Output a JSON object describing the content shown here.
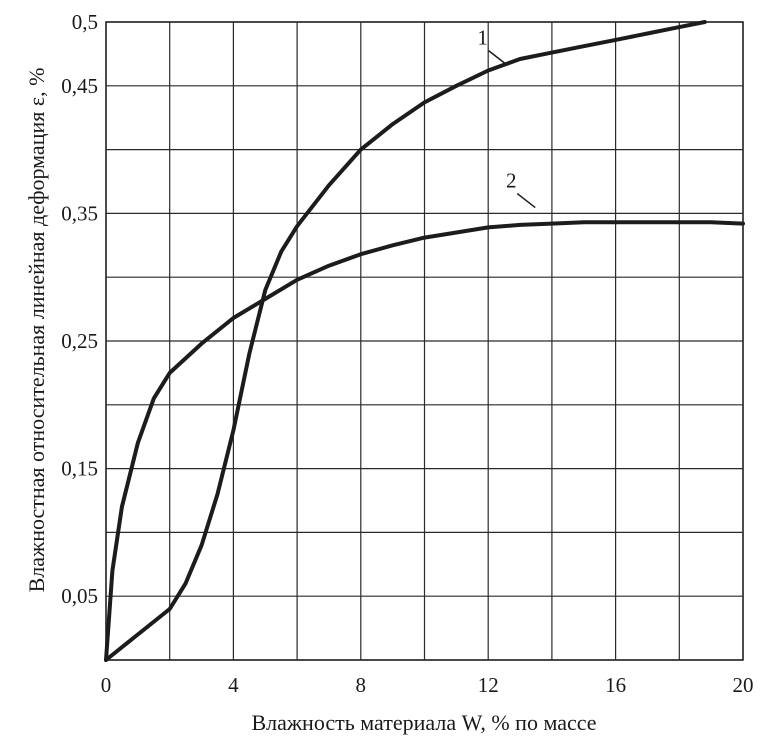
{
  "chart_data": {
    "type": "line",
    "xlabel": "Влажность  материала W, % по массе",
    "ylabel": "Влажностная относительная линейная деформация ε, %",
    "xlim": [
      0,
      20
    ],
    "ylim": [
      0,
      0.5
    ],
    "x_ticks": [
      "0",
      "4",
      "8",
      "12",
      "16",
      "20"
    ],
    "y_ticks": [
      "0,05",
      "0,15",
      "0,25",
      "0,35",
      "0,45",
      "0,5"
    ],
    "grid": true,
    "colors": {
      "curve": "#1c1c1c",
      "grid": "#2a2a2a"
    },
    "series": [
      {
        "name": "1",
        "x": [
          0,
          1,
          2,
          2.5,
          3,
          3.5,
          4,
          4.5,
          5,
          5.5,
          6,
          7,
          8,
          9,
          10,
          11,
          12,
          13,
          14,
          15,
          16,
          17,
          18,
          18.8
        ],
        "y": [
          0,
          0.02,
          0.04,
          0.06,
          0.09,
          0.13,
          0.18,
          0.24,
          0.29,
          0.32,
          0.34,
          0.372,
          0.4,
          0.42,
          0.437,
          0.45,
          0.462,
          0.471,
          0.476,
          0.481,
          0.486,
          0.491,
          0.496,
          0.5
        ]
      },
      {
        "name": "2",
        "x": [
          0,
          0.2,
          0.5,
          1,
          1.5,
          2,
          3,
          4,
          5,
          6,
          7,
          8,
          9,
          10,
          11,
          12,
          13,
          14,
          15,
          16,
          17,
          18,
          19,
          20
        ],
        "y": [
          0,
          0.07,
          0.12,
          0.17,
          0.205,
          0.225,
          0.248,
          0.268,
          0.283,
          0.298,
          0.309,
          0.318,
          0.325,
          0.331,
          0.335,
          0.339,
          0.341,
          0.342,
          0.343,
          0.343,
          0.343,
          0.343,
          0.343,
          0.342
        ]
      }
    ],
    "curve_labels": [
      {
        "text": "1",
        "x": 12.2,
        "y": 0.476
      },
      {
        "text": "2",
        "x": 13.1,
        "y": 0.364
      }
    ]
  }
}
